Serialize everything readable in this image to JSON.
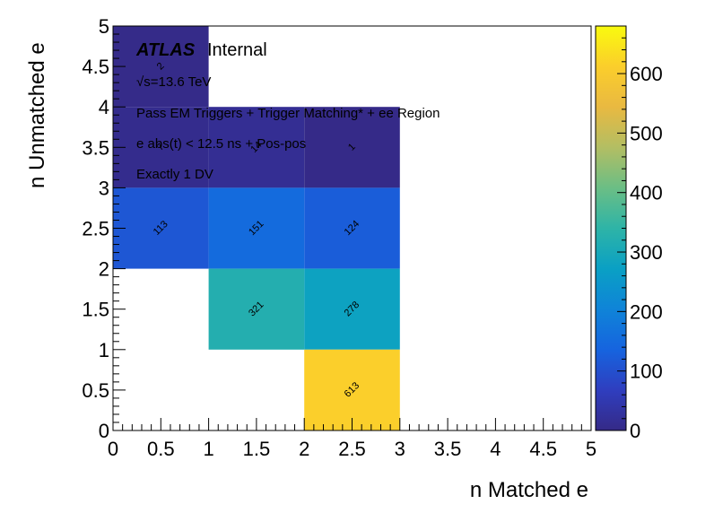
{
  "chart_data": {
    "type": "heatmap",
    "title": "",
    "xlabel": "n Matched e",
    "ylabel": "n Unmatched e",
    "xlim": [
      0,
      5
    ],
    "ylim": [
      0,
      5
    ],
    "xticks": [
      "0",
      "0.5",
      "1",
      "1.5",
      "2",
      "2.5",
      "3",
      "3.5",
      "4",
      "4.5",
      "5"
    ],
    "yticks": [
      "0",
      "0.5",
      "1",
      "1.5",
      "2",
      "2.5",
      "3",
      "3.5",
      "4",
      "4.5",
      "5"
    ],
    "zlim": [
      0,
      680
    ],
    "zticks": [
      "0",
      "100",
      "200",
      "300",
      "400",
      "500",
      "600"
    ],
    "colormap": "parula",
    "cells": [
      {
        "x": [
          0,
          1
        ],
        "y": [
          4,
          5
        ],
        "value": 2,
        "label": "2"
      },
      {
        "x": [
          0,
          1
        ],
        "y": [
          3,
          4
        ],
        "value": 7,
        "label": "7"
      },
      {
        "x": [
          1,
          2
        ],
        "y": [
          3,
          4
        ],
        "value": 14,
        "label": "14"
      },
      {
        "x": [
          2,
          3
        ],
        "y": [
          3,
          4
        ],
        "value": 1,
        "label": "1"
      },
      {
        "x": [
          0,
          1
        ],
        "y": [
          2,
          3
        ],
        "value": 113,
        "label": "113"
      },
      {
        "x": [
          1,
          2
        ],
        "y": [
          2,
          3
        ],
        "value": 151,
        "label": "151"
      },
      {
        "x": [
          2,
          3
        ],
        "y": [
          2,
          3
        ],
        "value": 124,
        "label": "124"
      },
      {
        "x": [
          1,
          2
        ],
        "y": [
          1,
          2
        ],
        "value": 321,
        "label": "321"
      },
      {
        "x": [
          2,
          3
        ],
        "y": [
          1,
          2
        ],
        "value": 278,
        "label": "278"
      },
      {
        "x": [
          2,
          3
        ],
        "y": [
          0,
          1
        ],
        "value": 613,
        "label": "613"
      }
    ],
    "annotations": {
      "atlas": "ATLAS",
      "atlas_status": "Internal",
      "energy": "√s=13.6 TeV",
      "line1": "Pass EM Triggers + Trigger Matching* + ee Region",
      "line2": "e abs(t) < 12.5 ns + Pos-pos",
      "line3": "Exactly 1 DV"
    }
  }
}
